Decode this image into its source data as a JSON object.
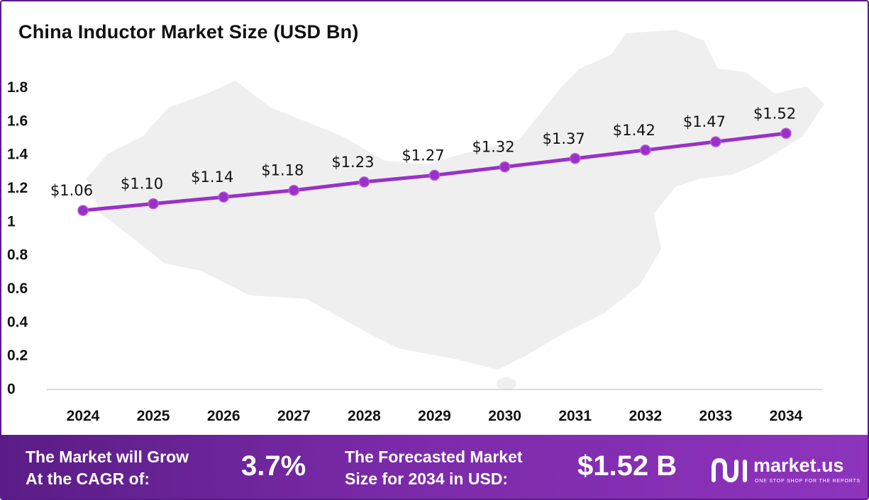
{
  "chart_data": {
    "type": "line",
    "title": "China Inductor Market Size (USD Bn)",
    "categories": [
      "2024",
      "2025",
      "2026",
      "2027",
      "2028",
      "2029",
      "2030",
      "2031",
      "2032",
      "2033",
      "2034"
    ],
    "series": [
      {
        "values": [
          1.06,
          1.1,
          1.14,
          1.18,
          1.23,
          1.27,
          1.32,
          1.37,
          1.42,
          1.47,
          1.52
        ],
        "labels": [
          "$1.06",
          "$1.10",
          "$1.14",
          "$1.18",
          "$1.23",
          "$1.27",
          "$1.32",
          "$1.37",
          "$1.42",
          "$1.47",
          "$1.52"
        ],
        "color": "#9b30c8"
      }
    ],
    "yticks": [
      "0",
      "0.2",
      "0.4",
      "0.6",
      "0.8",
      "1",
      "1.2",
      "1.4",
      "1.6",
      "1.8"
    ],
    "ylim": [
      0,
      1.8
    ],
    "grid": false,
    "legend": "none"
  },
  "footer": {
    "cagr_line1": "The Market will Grow",
    "cagr_line2": "At the CAGR of:",
    "cagr_value": "3.7%",
    "forecast_line1": "The Forecasted Market",
    "forecast_line2": "Size for 2034 in USD:",
    "forecast_value": "$1.52 B",
    "brand": "market.us",
    "tagline": "ONE STOP SHOP FOR THE REPORTS"
  },
  "colors": {
    "line": "#9b30c8",
    "footer_start": "#5a1d86",
    "footer_end": "#8e34bd",
    "map": "#efefef"
  },
  "icons": {
    "background": "china-map-silhouette",
    "logo": "market-us-logo-mark"
  }
}
